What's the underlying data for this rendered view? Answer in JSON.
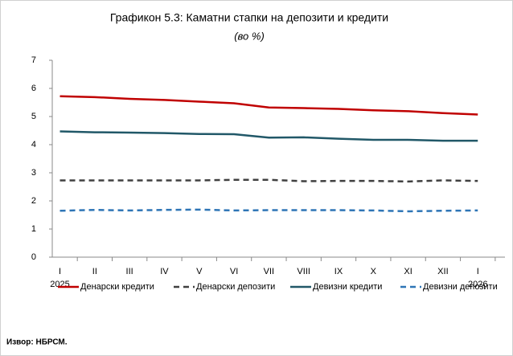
{
  "chart_data": {
    "type": "line",
    "title": "Графикон 5.3: Каматни стапки на депозити и кредити",
    "subtitle": "(во %)",
    "categories": [
      "I",
      "II",
      "III",
      "IV",
      "V",
      "VI",
      "VII",
      "VIII",
      "IX",
      "X",
      "XI",
      "XII",
      "I"
    ],
    "category_years": [
      "2025",
      null,
      null,
      null,
      null,
      null,
      null,
      null,
      null,
      null,
      null,
      null,
      "2026"
    ],
    "series": [
      {
        "name": "Денарски кредити",
        "color": "#c00000",
        "dashed": false,
        "values": [
          5.72,
          5.69,
          5.63,
          5.59,
          5.53,
          5.47,
          5.32,
          5.3,
          5.27,
          5.22,
          5.19,
          5.12,
          5.07
        ]
      },
      {
        "name": "Денарски депозити",
        "color": "#404040",
        "dashed": true,
        "values": [
          2.73,
          2.73,
          2.73,
          2.73,
          2.73,
          2.75,
          2.75,
          2.7,
          2.71,
          2.71,
          2.69,
          2.73,
          2.71
        ]
      },
      {
        "name": "Девизни кредити",
        "color": "#215868",
        "dashed": false,
        "values": [
          4.47,
          4.44,
          4.43,
          4.41,
          4.38,
          4.37,
          4.25,
          4.26,
          4.21,
          4.17,
          4.17,
          4.14,
          4.14
        ]
      },
      {
        "name": "Девизни депозити",
        "color": "#2e75b6",
        "dashed": true,
        "values": [
          1.65,
          1.68,
          1.66,
          1.68,
          1.69,
          1.66,
          1.67,
          1.67,
          1.67,
          1.66,
          1.63,
          1.65,
          1.66
        ]
      }
    ],
    "ylim": [
      0,
      7
    ],
    "yticks": [
      0,
      1,
      2,
      3,
      4,
      5,
      6,
      7
    ],
    "grid": false,
    "source": "Извор: НБРСМ."
  }
}
